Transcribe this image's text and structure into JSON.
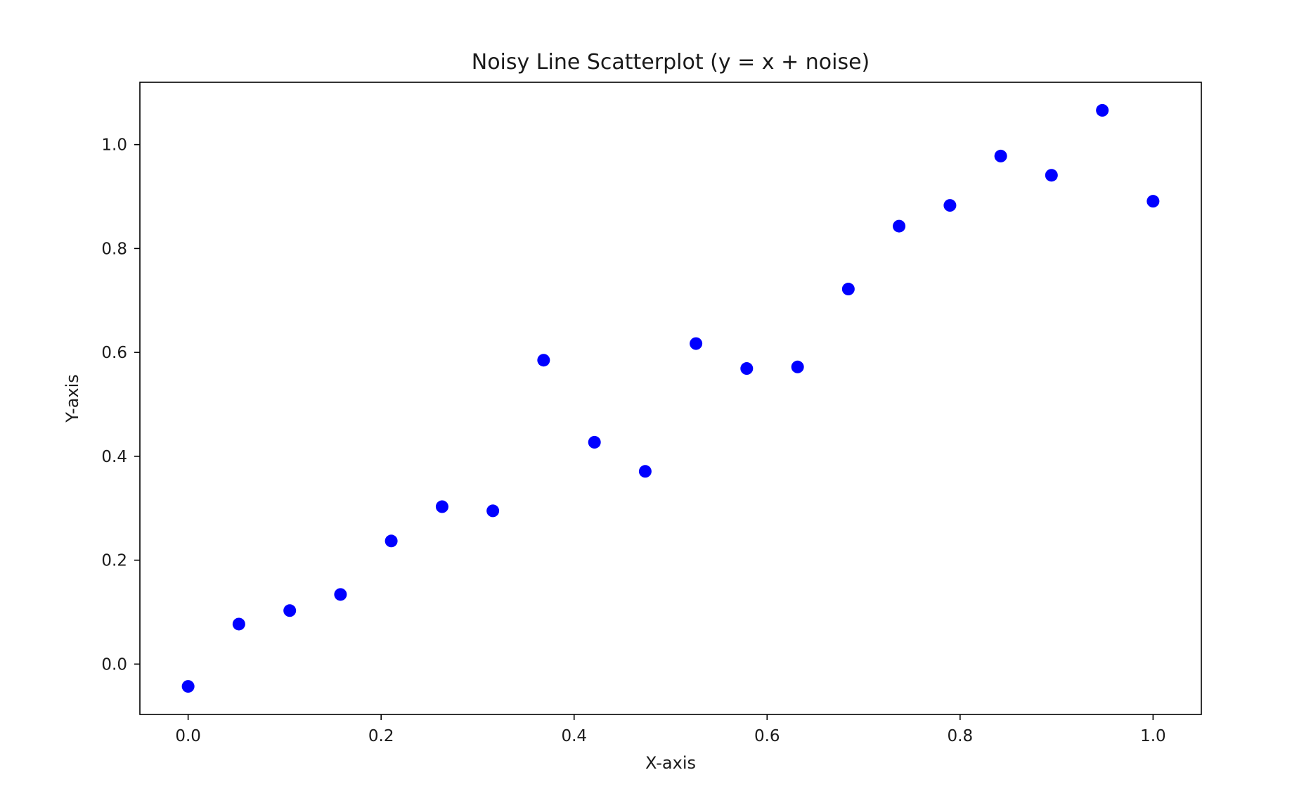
{
  "chart_data": {
    "type": "scatter",
    "title": "Noisy Line Scatterplot (y = x + noise)",
    "xlabel": "X-axis",
    "ylabel": "Y-axis",
    "xlim": [
      -0.05,
      1.05
    ],
    "ylim": [
      -0.097,
      1.12
    ],
    "grid": false,
    "x_ticks": [
      0.0,
      0.2,
      0.4,
      0.6,
      0.8,
      1.0
    ],
    "x_tick_labels": [
      "0.0",
      "0.2",
      "0.4",
      "0.6",
      "0.8",
      "1.0"
    ],
    "y_ticks": [
      0.0,
      0.2,
      0.4,
      0.6,
      0.8,
      1.0
    ],
    "y_tick_labels": [
      "0.0",
      "0.2",
      "0.4",
      "0.6",
      "0.8",
      "1.0"
    ],
    "point_color": "#0000ff",
    "series": [
      {
        "x": [
          0.0,
          0.0526,
          0.1053,
          0.1579,
          0.2105,
          0.2632,
          0.3158,
          0.3684,
          0.4211,
          0.4737,
          0.5263,
          0.5789,
          0.6316,
          0.6842,
          0.7368,
          0.7895,
          0.8421,
          0.8947,
          0.9474,
          1.0
        ],
        "y": [
          -0.043,
          0.077,
          0.103,
          0.134,
          0.237,
          0.303,
          0.295,
          0.585,
          0.427,
          0.371,
          0.617,
          0.569,
          0.572,
          0.722,
          0.843,
          0.883,
          0.978,
          0.941,
          1.066,
          0.891
        ]
      }
    ]
  }
}
